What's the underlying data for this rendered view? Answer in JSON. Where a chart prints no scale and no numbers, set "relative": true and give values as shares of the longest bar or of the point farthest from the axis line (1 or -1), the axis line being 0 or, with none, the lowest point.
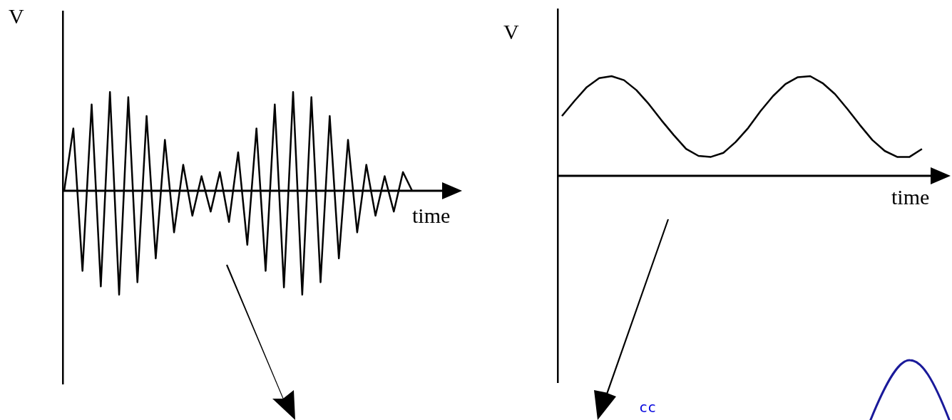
{
  "chart_data": [
    {
      "type": "line",
      "relative": true,
      "ylabel": "V",
      "xlabel": "time",
      "marker": "none",
      "categories": [
        null,
        null,
        null,
        null,
        null,
        null,
        null,
        null,
        null,
        null,
        null,
        null,
        null,
        null,
        null,
        null,
        null,
        null,
        null,
        null,
        null,
        null,
        null,
        null,
        null,
        null,
        null,
        null,
        null,
        null,
        null,
        null,
        null,
        null,
        null,
        null,
        null,
        null,
        null
      ],
      "series": [
        {
          "color": "#000000",
          "values": [
            0,
            0.6,
            -0.77,
            0.83,
            -0.92,
            0.95,
            -1,
            0.9,
            -0.88,
            0.72,
            -0.65,
            0.49,
            -0.4,
            0.25,
            -0.24,
            0.14,
            -0.2,
            0.18,
            -0.3,
            0.37,
            -0.52,
            0.6,
            -0.77,
            0.83,
            -0.93,
            0.95,
            -1,
            0.9,
            -0.88,
            0.72,
            -0.65,
            0.49,
            -0.4,
            0.25,
            -0.24,
            0.14,
            -0.2,
            0.18,
            0
          ]
        }
      ]
    },
    {
      "type": "line",
      "relative": true,
      "ylabel": "V",
      "xlabel": "time",
      "marker": "none",
      "annotations": [
        "cc"
      ],
      "categories": [
        null,
        null,
        null,
        null,
        null,
        null,
        null,
        null,
        null,
        null,
        null,
        null,
        null,
        null,
        null,
        null,
        null,
        null,
        null,
        null,
        null,
        null,
        null,
        null,
        null,
        null,
        null,
        null,
        null,
        null
      ],
      "series": [
        {
          "color": "#000000",
          "values": [
            0.6,
            0.75,
            0.89,
            0.98,
            1,
            0.96,
            0.86,
            0.72,
            0.56,
            0.41,
            0.27,
            0.2,
            0.19,
            0.23,
            0.34,
            0.48,
            0.65,
            0.8,
            0.92,
            0.99,
            1,
            0.93,
            0.82,
            0.67,
            0.51,
            0.36,
            0.25,
            0.19,
            0.19,
            0.27
          ]
        }
      ]
    }
  ]
}
